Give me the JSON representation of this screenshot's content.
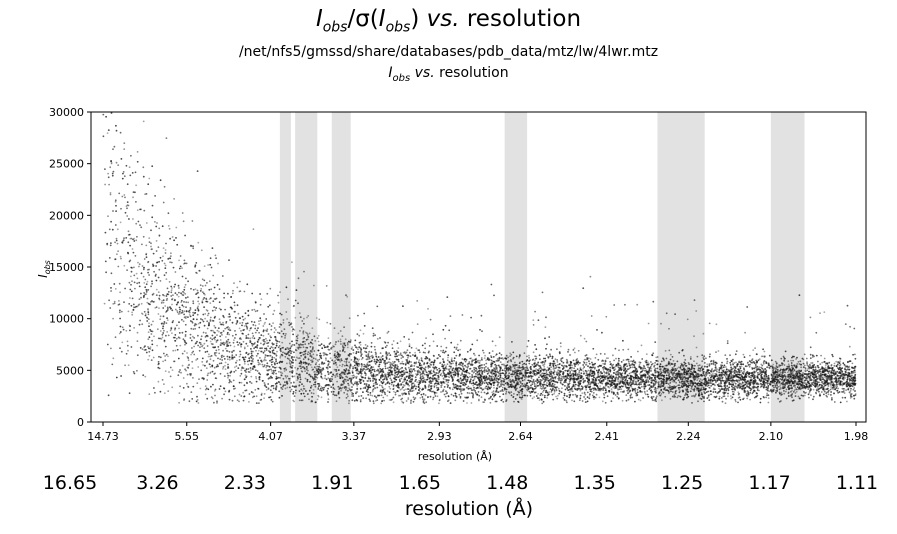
{
  "title": {
    "main_part1": "I",
    "main_sub1": "obs",
    "main_part2": "/σ(",
    "main_part3": "I",
    "main_sub2": "obs",
    "main_part4": ") ",
    "main_vs": "vs.",
    "main_part5": " resolution"
  },
  "subtitle_path": "/net/nfs5/gmssd/share/databases/pdb_data/mtz/lw/4lwr.mtz",
  "subtitle_2": {
    "i": "I",
    "sub": "obs",
    "vs": "vs.",
    "rest": " resolution"
  },
  "chart_data": {
    "type": "scatter",
    "xlabel": "resolution (Å)",
    "ylabel_sym": "I",
    "ylabel_sub": "obs",
    "ylim": [
      0,
      30000
    ],
    "yticks": [
      "0",
      "5000",
      "10000",
      "15000",
      "20000",
      "25000",
      "30000"
    ],
    "xticks": [
      "14.73",
      "5.55",
      "4.07",
      "3.37",
      "2.93",
      "2.64",
      "2.41",
      "2.24",
      "2.10",
      "1.98"
    ],
    "x_axis_scale": "1/d² (resolution)",
    "grid": false,
    "point_color": "#1a1a1a",
    "band_color": "#e2e2e2",
    "shaded_resolution_bands": [
      [
        "3.97",
        "3.86"
      ],
      [
        "3.82",
        "3.63"
      ],
      [
        "3.52",
        "3.39"
      ],
      [
        "2.69",
        "2.62"
      ],
      [
        "2.30",
        "2.21"
      ],
      [
        "2.10",
        "2.05"
      ]
    ],
    "trend": {
      "description": "Iobs decreases with resolution; low-resolution mean ~20000 with large spread, high resolution mean ~4500"
    },
    "secondary_axis": {
      "label": "resolution (Å)",
      "ticks": [
        "16.65",
        "3.26",
        "2.33",
        "1.91",
        "1.65",
        "1.48",
        "1.35",
        "1.25",
        "1.17",
        "1.11"
      ]
    }
  }
}
